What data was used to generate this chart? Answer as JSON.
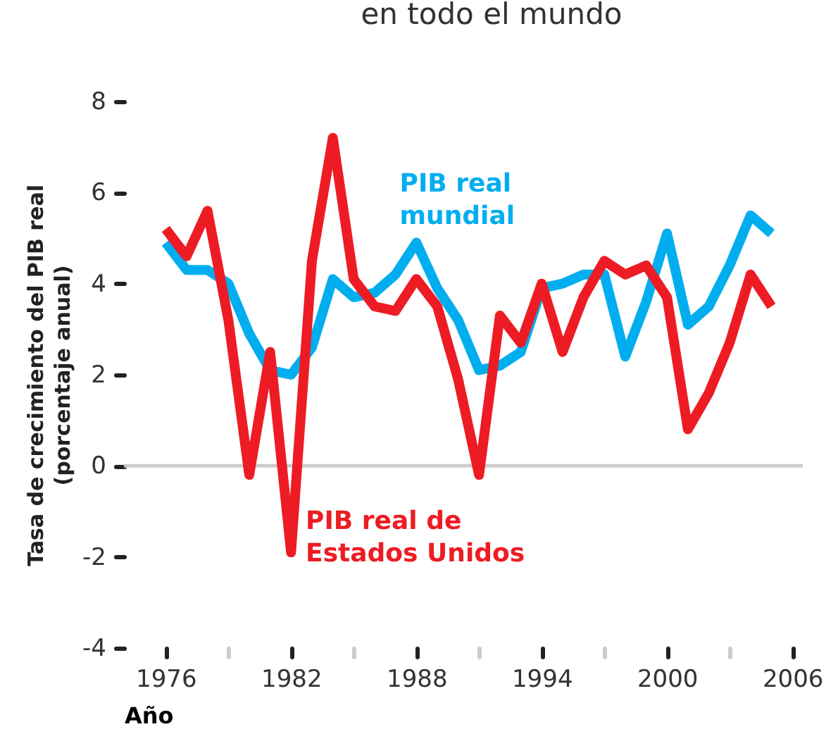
{
  "chart_data": {
    "type": "line",
    "title": "en todo el mundo",
    "xlabel": "Año",
    "ylabel": "Tasa de crecimiento del PIB real (porcentaje anual)",
    "x": [
      1976,
      1977,
      1978,
      1979,
      1980,
      1981,
      1982,
      1983,
      1984,
      1985,
      1986,
      1987,
      1988,
      1989,
      1990,
      1991,
      1992,
      1993,
      1994,
      1995,
      1996,
      1997,
      1998,
      1999,
      2000,
      2001,
      2002,
      2003,
      2004,
      2005
    ],
    "series": [
      {
        "name": "PIB real mundial",
        "color": "#00aeef",
        "values": [
          4.9,
          4.3,
          4.3,
          4.0,
          2.9,
          2.1,
          2.0,
          2.6,
          4.1,
          3.7,
          3.8,
          4.2,
          4.9,
          3.9,
          3.2,
          2.1,
          2.2,
          2.5,
          3.9,
          4.0,
          4.2,
          4.2,
          2.4,
          3.6,
          5.1,
          3.1,
          3.5,
          4.4,
          5.5,
          5.1
        ]
      },
      {
        "name": "PIB real de Estados Unidos",
        "color": "#ed1c24",
        "values": [
          5.2,
          4.6,
          5.6,
          3.2,
          -0.2,
          2.5,
          -1.9,
          4.5,
          7.2,
          4.1,
          3.5,
          3.4,
          4.1,
          3.5,
          1.9,
          -0.2,
          3.3,
          2.7,
          4.0,
          2.5,
          3.7,
          4.5,
          4.2,
          4.4,
          3.7,
          0.8,
          1.6,
          2.7,
          4.2,
          3.5
        ]
      }
    ],
    "xlim": [
      1974,
      2006.5
    ],
    "xticks": [
      1976,
      {
        "value": 1979,
        "label": null
      },
      1982,
      {
        "value": 1985,
        "label": null
      },
      1988,
      {
        "value": 1991,
        "label": null
      },
      1994,
      {
        "value": 1997,
        "label": null
      },
      2000,
      {
        "value": 2003,
        "label": null
      },
      2006
    ],
    "ylim": [
      -4,
      8
    ],
    "yticks": [
      -4,
      -2,
      0,
      2,
      4,
      6,
      8
    ],
    "ref_lines": [
      {
        "axis": "y",
        "value": 0,
        "color": "#cccccc"
      }
    ],
    "marker": "none",
    "line_style": "solid"
  }
}
